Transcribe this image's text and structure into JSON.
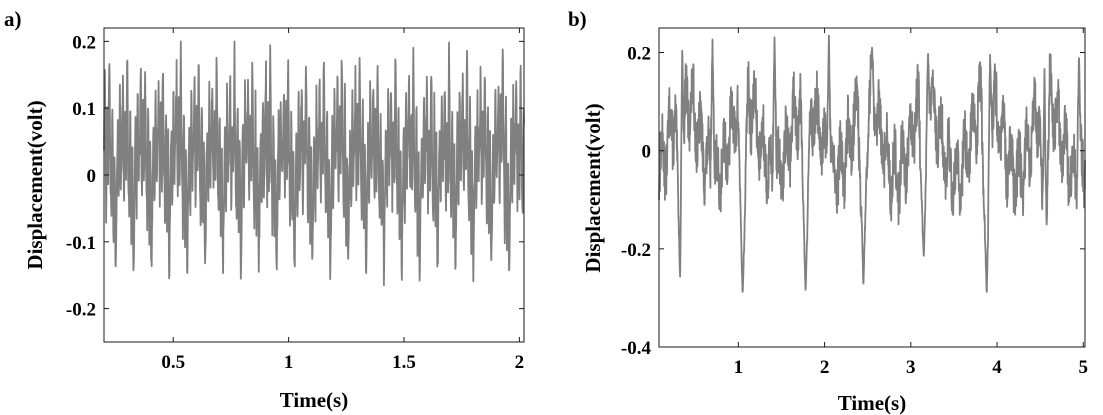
{
  "chart_data": [
    {
      "panel_label": "a)",
      "type": "line",
      "xlabel": "Time(s)",
      "ylabel": "Displacement(volt)",
      "xlim": [
        0.2,
        2.02
      ],
      "ylim": [
        -0.25,
        0.22
      ],
      "xticks": [
        0.5,
        1,
        1.5,
        2
      ],
      "xtick_labels": [
        "0.5",
        "1",
        "1.5",
        "2"
      ],
      "yticks": [
        -0.2,
        -0.1,
        0,
        0.1,
        0.2
      ],
      "ytick_labels": [
        "-0.2",
        "-0.1",
        "0",
        "0.1",
        "0.2"
      ],
      "grid": false,
      "series": [
        {
          "color": "#808080",
          "waveform": {
            "x_start": 0.2,
            "x_end": 2.02,
            "period": 0.0775,
            "max": 0.2,
            "min": -0.165,
            "shape": [
              0.05,
              0.15,
              -0.05,
              0.1,
              -0.02,
              0.19,
              0.02,
              -0.08,
              0.12,
              -0.1,
              0.05,
              -0.155,
              -0.04,
              0.08,
              -0.06,
              0.13,
              -0.01
            ]
          }
        }
      ]
    },
    {
      "panel_label": "b)",
      "type": "line",
      "xlabel": "Time(s)",
      "ylabel": "Displacement(volt)",
      "xlim": [
        0.08,
        5.02
      ],
      "ylim": [
        -0.4,
        0.25
      ],
      "xticks": [
        1,
        2,
        3,
        4,
        5
      ],
      "xtick_labels": [
        "1",
        "2",
        "3",
        "4",
        "5"
      ],
      "yticks": [
        -0.4,
        -0.2,
        0,
        0.2
      ],
      "ytick_labels": [
        "-0.4",
        "-0.2",
        "0",
        "0.2"
      ],
      "grid": false,
      "series": [
        {
          "color": "#808080",
          "waveform": {
            "x_start": 0.08,
            "x_end": 5.02,
            "period": 0.7,
            "max": 0.24,
            "min": -0.3,
            "spikes_down": [
              0.33,
              1.05,
              1.78,
              2.45,
              3.15,
              3.88,
              4.55
            ],
            "spike_values": [
              -0.29,
              -0.295,
              -0.29,
              -0.28,
              -0.22,
              -0.295,
              -0.3
            ],
            "spikes_up": [
              0.35,
              0.7,
              1.42,
              2.05,
              2.55,
              3.2,
              3.92,
              4.55,
              4.95
            ],
            "spike_up_values": [
              0.22,
              0.23,
              0.24,
              0.24,
              0.21,
              0.2,
              0.2,
              0.18,
              0.2
            ]
          }
        }
      ]
    }
  ]
}
